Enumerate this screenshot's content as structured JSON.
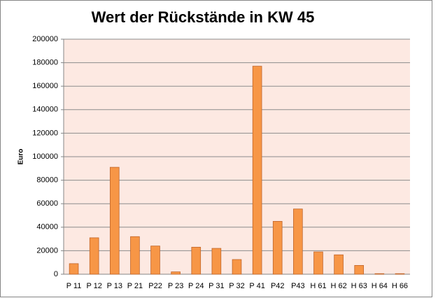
{
  "chart_data": {
    "type": "bar",
    "title": "Wert der Rückstände in KW 45",
    "y_label": "Euro",
    "categories": [
      "P 11",
      "P 12",
      "P 13",
      "P 21",
      "P22",
      "P 23",
      "P 24",
      "P 31",
      "P 32",
      "P 41",
      "P42",
      "P43",
      "H 61",
      "H 62",
      "H 63",
      "H 64",
      "H 66"
    ],
    "values": [
      9000,
      31000,
      91000,
      32000,
      24000,
      2000,
      23000,
      22000,
      12500,
      177000,
      45000,
      55500,
      19000,
      16500,
      7500,
      500,
      500
    ],
    "color": "#f79646",
    "ylim": [
      0,
      200000
    ],
    "yticks": [
      0,
      20000,
      40000,
      60000,
      80000,
      100000,
      120000,
      140000,
      160000,
      180000,
      200000
    ],
    "grid": true
  }
}
